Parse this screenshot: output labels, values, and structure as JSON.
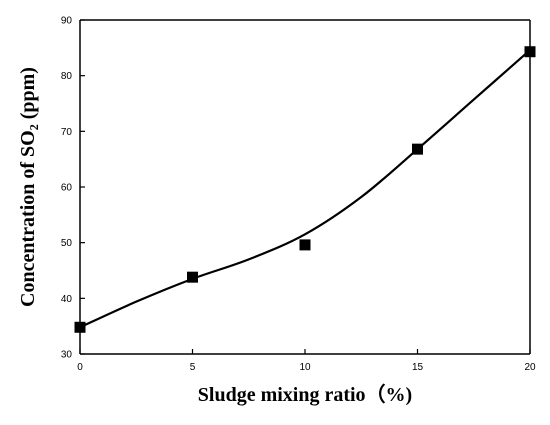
{
  "chart_data": {
    "type": "scatter",
    "xlabel": "Sludge mixing ratio（%)",
    "ylabel": "Concentration of SO₂ (ppm)",
    "xlim": [
      0,
      20
    ],
    "ylim": [
      30,
      90
    ],
    "x_ticks": [
      0,
      5,
      10,
      15,
      20
    ],
    "y_ticks": [
      30,
      40,
      50,
      60,
      70,
      80,
      90
    ],
    "grid": false,
    "series": [
      {
        "x": [
          0,
          5,
          10,
          15,
          20
        ],
        "y": [
          34.8,
          43.8,
          49.6,
          66.8,
          84.3
        ],
        "marker": "square",
        "color": "#000000"
      }
    ],
    "fit_curve": {
      "x": [
        0,
        2.5,
        5,
        7.5,
        10,
        12.5,
        15,
        17.5,
        20
      ],
      "y": [
        34.8,
        39.4,
        43.5,
        47.0,
        51.5,
        58.2,
        66.8,
        75.7,
        84.6
      ],
      "color": "#000000"
    }
  }
}
